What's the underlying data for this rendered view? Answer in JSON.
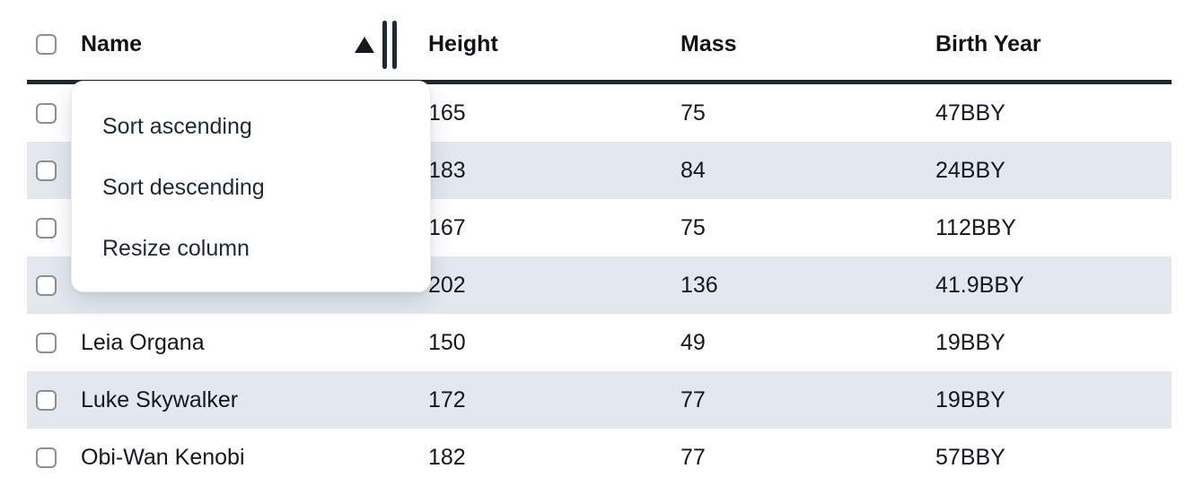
{
  "table": {
    "columns": [
      {
        "label": "Name",
        "sorted": "ascending"
      },
      {
        "label": "Height"
      },
      {
        "label": "Mass"
      },
      {
        "label": "Birth Year"
      }
    ],
    "rows": [
      {
        "name": "",
        "height": "165",
        "mass": "75",
        "birth_year": "47BBY"
      },
      {
        "name": "",
        "height": "183",
        "mass": "84",
        "birth_year": "24BBY"
      },
      {
        "name": "",
        "height": "167",
        "mass": "75",
        "birth_year": "112BBY"
      },
      {
        "name": "",
        "height": "202",
        "mass": "136",
        "birth_year": "41.9BBY"
      },
      {
        "name": "Leia Organa",
        "height": "150",
        "mass": "49",
        "birth_year": "19BBY"
      },
      {
        "name": "Luke Skywalker",
        "height": "172",
        "mass": "77",
        "birth_year": "19BBY"
      },
      {
        "name": "Obi-Wan Kenobi",
        "height": "182",
        "mass": "77",
        "birth_year": "57BBY"
      }
    ]
  },
  "column_menu": {
    "items": [
      "Sort ascending",
      "Sort descending",
      "Resize column"
    ]
  },
  "icons": {
    "sort_ascending": "up-triangle",
    "column_resize": "double-vertical-bars",
    "checkbox_state": "unchecked"
  },
  "colors": {
    "header_border": "#1f2935",
    "row_stripe": "#e3e8ef",
    "menu_text": "#1f2935",
    "cell_text": "#15181d",
    "checkbox_border": "#878f98",
    "menu_background": "#ffffff"
  }
}
